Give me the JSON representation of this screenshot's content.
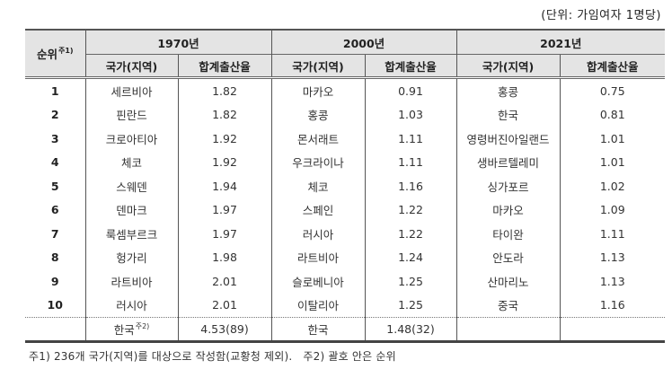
{
  "unit_label": "(단위: 가임여자 1명당)",
  "header": {
    "rank_label": "순위",
    "rank_note": "주1)",
    "periods": [
      "1970년",
      "2000년",
      "2021년"
    ],
    "sub_country": "국가(지역)",
    "sub_tfr": "합계출산율"
  },
  "rows": [
    {
      "rank": "1",
      "c1970": "세르비아",
      "v1970": "1.82",
      "c2000": "마카오",
      "v2000": "0.91",
      "c2021": "홍콩",
      "v2021": "0.75"
    },
    {
      "rank": "2",
      "c1970": "핀란드",
      "v1970": "1.82",
      "c2000": "홍콩",
      "v2000": "1.03",
      "c2021": "한국",
      "v2021": "0.81"
    },
    {
      "rank": "3",
      "c1970": "크로아티아",
      "v1970": "1.92",
      "c2000": "몬서래트",
      "v2000": "1.11",
      "c2021": "영령버진아일랜드",
      "v2021": "1.01"
    },
    {
      "rank": "4",
      "c1970": "체코",
      "v1970": "1.92",
      "c2000": "우크라이나",
      "v2000": "1.11",
      "c2021": "생바르텔레미",
      "v2021": "1.01"
    },
    {
      "rank": "5",
      "c1970": "스웨덴",
      "v1970": "1.94",
      "c2000": "체코",
      "v2000": "1.16",
      "c2021": "싱가포르",
      "v2021": "1.02"
    },
    {
      "rank": "6",
      "c1970": "덴마크",
      "v1970": "1.97",
      "c2000": "스페인",
      "v2000": "1.22",
      "c2021": "마카오",
      "v2021": "1.09"
    },
    {
      "rank": "7",
      "c1970": "룩셈부르크",
      "v1970": "1.97",
      "c2000": "러시아",
      "v2000": "1.22",
      "c2021": "타이완",
      "v2021": "1.11"
    },
    {
      "rank": "8",
      "c1970": "헝가리",
      "v1970": "1.98",
      "c2000": "라트비아",
      "v2000": "1.24",
      "c2021": "안도라",
      "v2021": "1.13"
    },
    {
      "rank": "9",
      "c1970": "라트비아",
      "v1970": "2.01",
      "c2000": "슬로베니아",
      "v2000": "1.25",
      "c2021": "산마리노",
      "v2021": "1.13"
    },
    {
      "rank": "10",
      "c1970": "러시아",
      "v1970": "2.01",
      "c2000": "이탈리아",
      "v2000": "1.25",
      "c2021": "중국",
      "v2021": "1.16"
    }
  ],
  "korea_row": {
    "c1970": "한국",
    "c1970_note": "주2)",
    "v1970": "4.53(89)",
    "c2000": "한국",
    "v2000": "1.48(32)",
    "c2021": "",
    "v2021": ""
  },
  "notes": {
    "note1": "주1) 236개 국가(지역)를 대상으로 작성함(교황청 제외).",
    "note2": "주2) 괄호 안은 순위"
  }
}
